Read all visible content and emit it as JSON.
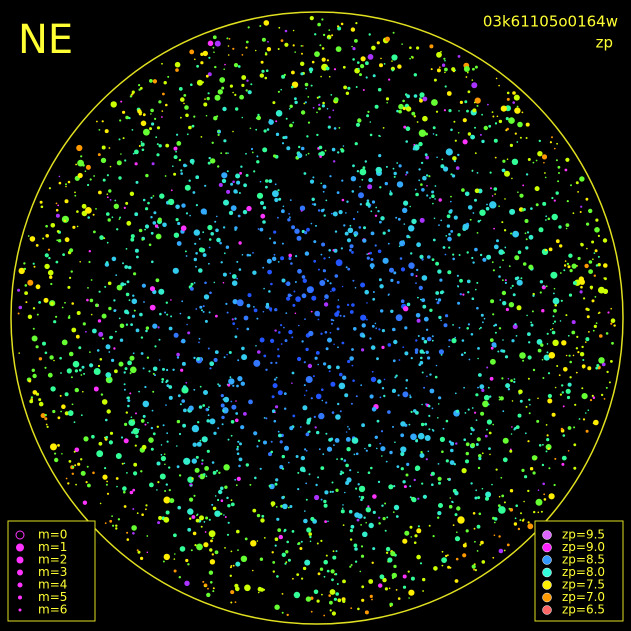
{
  "header": {
    "corner": "NE",
    "frame_id": "03k61105o0164w",
    "quantity": "zp"
  },
  "legend_m": [
    "m=0",
    "m=1",
    "m=2",
    "m=3",
    "m=4",
    "m=5",
    "m=6"
  ],
  "legend_zp": [
    "zp=9.5",
    "zp=9.0",
    "zp=8.5",
    "zp=8.0",
    "zp=7.5",
    "zp=7.0",
    "zp=6.5"
  ]
}
